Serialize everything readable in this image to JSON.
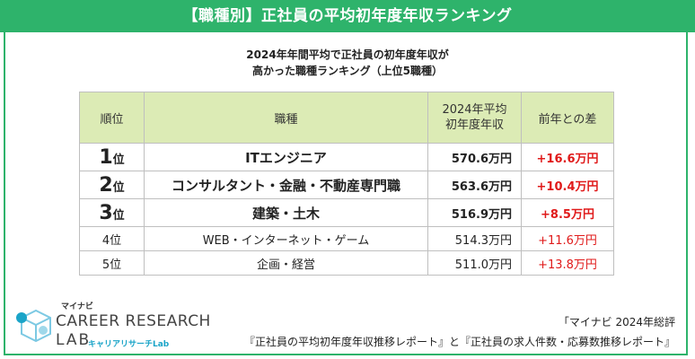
{
  "banner": {
    "title": "【職種別】正社員の平均初年度年収ランキング",
    "color": "#2eb36b"
  },
  "subtitle": {
    "line1": "2024年年間平均で正社員の初年度年収が",
    "line2": "高かった職種ランキング（上位5職種）"
  },
  "table": {
    "headers": {
      "rank": "順位",
      "job": "職種",
      "salary_line1": "2024年平均",
      "salary_line2": "初年度年収",
      "diff": "前年との差"
    },
    "header_color": "#dcebb5",
    "rows": [
      {
        "rank_num": "1",
        "rank_suffix": "位",
        "job": "ITエンジニア",
        "salary": "570.6万円",
        "diff": "+16.6万円"
      },
      {
        "rank_num": "2",
        "rank_suffix": "位",
        "job": "コンサルタント・金融・不動産専門職",
        "salary": "563.6万円",
        "diff": "+10.4万円"
      },
      {
        "rank_num": "3",
        "rank_suffix": "位",
        "job": "建築・土木",
        "salary": "516.9万円",
        "diff": "+8.5万円"
      },
      {
        "rank": "4位",
        "job": "WEB・インターネット・ゲーム",
        "salary": "514.3万円",
        "diff": "+11.6万円"
      },
      {
        "rank": "5位",
        "job": "企画・経営",
        "salary": "511.0万円",
        "diff": "+13.8万円"
      }
    ],
    "diff_color": "#e01a1a"
  },
  "logo": {
    "kana": "マイナビ",
    "main": "CAREER RESEARCH",
    "lab": "LAB",
    "sub": "キャリアリサーチLab"
  },
  "source": {
    "line1": "「マイナビ 2024年総評",
    "line2": "『正社員の平均初年度年収推移レポート』と『正社員の求人件数・応募数推移レポート』"
  }
}
